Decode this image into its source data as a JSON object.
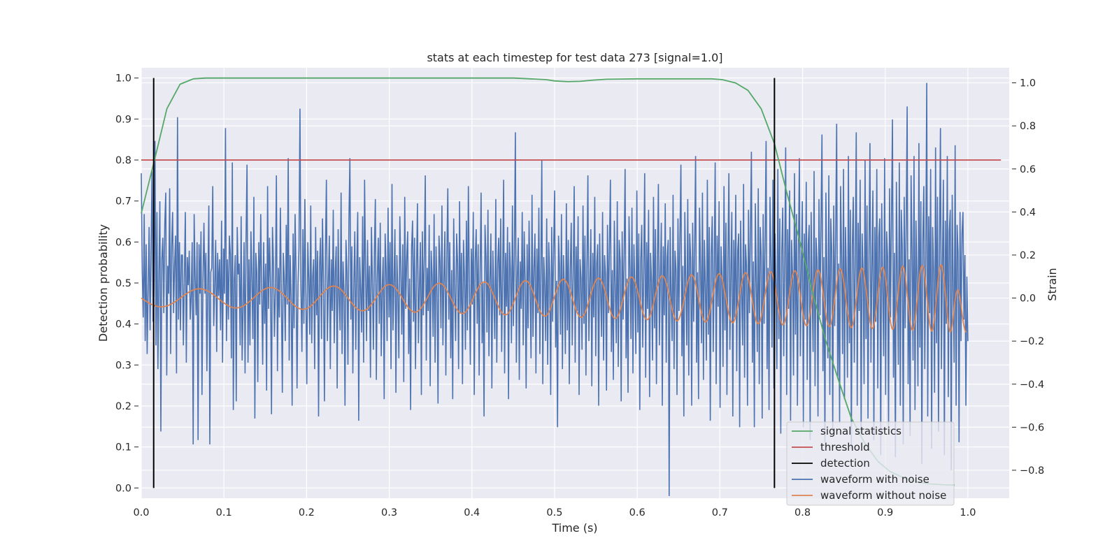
{
  "chart_data": {
    "type": "line",
    "title": "stats at each timestep for test data 273 [signal=1.0]",
    "xlabel": "Time (s)",
    "ylabel": "Detection probability",
    "ylabel_right": "Strain",
    "xlim": [
      0.0,
      1.05
    ],
    "ylim": [
      -0.025,
      1.025
    ],
    "ylim_right": [
      -0.93,
      1.07
    ],
    "x_ticks": [
      "0.0",
      "0.1",
      "0.2",
      "0.3",
      "0.4",
      "0.5",
      "0.6",
      "0.7",
      "0.8",
      "0.9",
      "1.0"
    ],
    "y_ticks": [
      "0.0",
      "0.1",
      "0.2",
      "0.3",
      "0.4",
      "0.5",
      "0.6",
      "0.7",
      "0.8",
      "0.9",
      "1.0"
    ],
    "y_right_ticks": [
      "−0.8",
      "−0.6",
      "−0.4",
      "−0.2",
      "0.0",
      "0.2",
      "0.4",
      "0.6",
      "0.8",
      "1.0"
    ],
    "grid": true,
    "legend_position": "lower-right",
    "colors": {
      "signal_statistics": "#55a868",
      "threshold": "#c44e52",
      "detection": "#000000",
      "waveform_with_noise": "#4c72b0",
      "waveform_without_noise": "#dd8452",
      "background": "#eaeaf2",
      "grid": "#ffffff"
    },
    "series": [
      {
        "name": "signal statistics",
        "axis": "left",
        "x": [
          0.0,
          0.016,
          0.031,
          0.047,
          0.063,
          0.078,
          0.1,
          0.2,
          0.3,
          0.4,
          0.45,
          0.47,
          0.49,
          0.5,
          0.516,
          0.531,
          0.547,
          0.563,
          0.6,
          0.65,
          0.69,
          0.703,
          0.719,
          0.734,
          0.75,
          0.766,
          0.781,
          0.797,
          0.813,
          0.828,
          0.844,
          0.859,
          0.875,
          0.891,
          0.906,
          0.922,
          0.938,
          0.953,
          0.969,
          0.984
        ],
        "y": [
          0.67,
          0.8,
          0.925,
          0.985,
          0.998,
          1.0,
          1.0,
          1.0,
          1.0,
          1.0,
          1.0,
          0.998,
          0.996,
          0.993,
          0.991,
          0.992,
          0.995,
          0.997,
          0.998,
          0.998,
          0.998,
          0.996,
          0.988,
          0.97,
          0.925,
          0.84,
          0.72,
          0.6,
          0.47,
          0.36,
          0.26,
          0.17,
          0.11,
          0.065,
          0.04,
          0.025,
          0.015,
          0.01,
          0.008,
          0.007
        ]
      },
      {
        "name": "threshold",
        "axis": "left",
        "x": [
          0.0,
          1.04
        ],
        "y": [
          0.8,
          0.8
        ]
      },
      {
        "name": "detection",
        "axis": "left",
        "vlines": [
          0.015,
          0.766
        ],
        "ymin": 0.0,
        "ymax": 1.0
      },
      {
        "name": "waveform with noise",
        "axis": "right",
        "x_start": 0.0,
        "x_end": 1.0,
        "description_amplitude_std": 0.17,
        "y_sample_every_0_0025s": [
          0.58,
          0.12,
          -0.09,
          0.39,
          -0.2,
          0.25,
          -0.26,
          0.04,
          0.33,
          -0.15,
          0.21,
          0.59,
          -0.11,
          0.06,
          0.73,
          -0.22,
          0.4,
          -0.33,
          0.12,
          0.45,
          -0.62,
          0.18,
          0.28,
          -0.07,
          0.34,
          0.49,
          -0.36,
          0.15,
          0.02,
          0.51,
          -0.26,
          0.24,
          0.4,
          -0.07,
          0.15,
          0.29,
          -0.35,
          0.84,
          -0.1,
          0.26,
          -0.15,
          0.2,
          0.2,
          -0.22,
          0.09,
          0.4,
          -0.3,
          0.19,
          0.06,
          0.22,
          -0.1,
          0.01,
          0.26,
          -0.68,
          0.39,
          0.1,
          -0.08,
          0.26,
          -0.66,
          0.25,
          0.02,
          0.31,
          -0.45,
          0.08,
          0.35,
          0.02,
          0.21,
          -0.34,
          0.07,
          0.43,
          -0.68,
          0.12,
          0.14,
          0.52,
          -0.13,
          0.06,
          0.27,
          -0.25,
          0.21,
          0.01,
          0.18,
          -0.15,
          0.36,
          -0.3,
          0.23,
          0.02,
          0.79,
          -0.2,
          0.18,
          -0.1,
          0.29,
          0.2,
          -0.28,
          0.63,
          -0.52,
          0.08,
          0.2,
          -0.48,
          0.33,
          0.11,
          0.16,
          -0.22,
          0.38,
          -0.29,
          -0.05,
          0.26,
          -0.35,
          0.27,
          0.62,
          -0.3,
          0.18,
          -0.22,
          0.31,
          0.09,
          -0.19,
          0.47,
          -0.56,
          0.21,
          0.12,
          -0.39,
          0.26,
          -0.03,
          0.39,
          0.04,
          -0.31,
          0.26,
          -0.12,
          0.16,
          -0.43,
          0.52,
          -0.05,
          0.28,
          0.07,
          -0.54,
          0.33,
          0.16,
          -0.18,
          0.04,
          0.57,
          -0.34,
          0.14,
          -0.09,
          0.42,
          0.02,
          -0.44,
          0.21,
          0.09,
          -0.2,
          0.34,
          -0.03,
          0.65,
          -0.29,
          0.2,
          0.0,
          -0.5,
          0.3,
          -0.14,
          0.39,
          0.12,
          -0.42,
          0.06,
          0.23,
          0.88,
          0.05,
          -0.25,
          0.32,
          -0.12,
          0.46,
          0.03,
          -0.4,
          0.26,
          0.09,
          -0.17,
          0.43,
          -0.21,
          0.1,
          0.18,
          -0.33,
          0.33,
          -0.08,
          0.22,
          -0.55,
          0.15,
          0.28,
          -0.19,
          0.37,
          0.07,
          -0.48,
          0.21,
          0.55,
          -0.2,
          0.06,
          0.29,
          -0.33,
          0.18,
          -0.06,
          0.41,
          -0.21,
          0.12,
          0.24,
          -0.42,
          0.32,
          0.01,
          -0.15,
          0.49,
          -0.26,
          0.17,
          0.03,
          -0.5,
          0.27,
          0.12,
          -0.31,
          0.36,
          0.65,
          -0.1,
          0.24,
          -0.35,
          0.06,
          0.31,
          -0.24,
          0.14,
          0.4,
          -0.57,
          0.19,
          0.04,
          -0.16,
          0.38,
          -0.3,
          0.55,
          0.12,
          -0.2,
          0.27,
          -0.06,
          0.15,
          -0.37,
          0.33,
          0.08,
          -0.24,
          0.21,
          0.46,
          -0.38,
          0.1,
          0.28,
          -0.12,
          0.35,
          -0.27,
          0.05,
          0.19,
          -0.47,
          0.3,
          0.13,
          -0.2,
          0.42,
          -0.09,
          0.26,
          -0.33,
          0.53,
          -0.15,
          0.07,
          0.32,
          -0.44,
          0.2,
          0.02,
          -0.28,
          0.38,
          0.14,
          -0.17,
          0.25,
          -0.39,
          0.47,
          -0.05,
          0.18,
          0.31,
          -0.26,
          0.09,
          -0.52,
          0.23,
          0.36,
          -0.11,
          0.28,
          -0.33,
          0.12,
          0.44,
          -0.21,
          0.05,
          0.26,
          -0.45,
          0.31,
          -0.08,
          0.19,
          0.57,
          -0.29,
          0.14,
          -0.06,
          0.34,
          -0.41,
          0.22,
          0.1,
          -0.18,
          0.39,
          -0.3,
          0.24,
          0.03,
          -0.49,
          0.29,
          0.17,
          -0.14,
          0.43,
          -0.22,
          0.08,
          0.31,
          -0.36,
          0.2,
          0.51,
          -0.1,
          0.26,
          -0.28,
          0.13,
          -0.47,
          0.37,
          0.04,
          -0.2,
          0.3,
          0.16,
          -0.33,
          0.45,
          -0.07,
          0.21,
          -0.4,
          0.27,
          0.1,
          -0.24,
          0.36,
          -0.15,
          0.52,
          0.06,
          -0.31,
          0.23,
          -0.03,
          0.4,
          -0.45,
          0.18,
          0.32,
          -0.12,
          0.25,
          -0.36,
          0.12,
          0.49,
          -0.21,
          0.07,
          -0.55,
          0.34,
          0.19,
          -0.16,
          0.41,
          -0.27,
          0.09,
          0.3,
          -0.42,
          0.22,
          0.02,
          -0.19,
          0.46,
          -0.3,
          0.16,
          0.28,
          -0.08,
          0.37,
          -0.25,
          0.11,
          0.55,
          -0.35,
          0.21,
          -0.04,
          0.33,
          -0.47,
          0.26,
          0.13,
          -0.21,
          0.43,
          -0.13,
          0.2,
          0.77,
          -0.3,
          0.1,
          0.28,
          -0.38,
          0.17,
          -0.05,
          0.4,
          -0.22,
          0.31,
          0.08,
          -0.42,
          0.25,
          -0.14,
          0.36,
          0.04,
          -0.28,
          0.48,
          -0.18,
          0.14,
          0.3,
          -0.35,
          0.23,
          -0.07,
          0.42,
          -0.26,
          0.12,
          0.64,
          -0.4,
          0.19,
          0.06,
          -0.2,
          0.37,
          -0.31,
          0.26,
          0.1,
          -0.45,
          0.33,
          -0.11,
          0.22,
          0.5,
          -0.23,
          0.08,
          -0.6,
          0.29,
          0.15,
          -0.17,
          0.39,
          -0.33,
          0.2,
          0.04,
          -0.26,
          0.44,
          -0.15,
          0.27,
          -0.4,
          0.13,
          0.35,
          -0.22,
          0.1,
          0.52,
          -0.3,
          0.24,
          -0.06,
          0.38,
          -0.45,
          0.18,
          0.09,
          -0.24,
          0.43,
          -0.12,
          0.29,
          -0.36,
          0.14,
          0.57,
          -0.2,
          0.06,
          0.32,
          -0.41,
          0.21,
          -0.09,
          0.47,
          -0.27,
          0.16,
          0.25,
          -0.5,
          0.3,
          0.03,
          -0.18,
          0.4,
          -0.29,
          0.2,
          0.11,
          -0.43,
          0.34,
          -0.07,
          0.23,
          0.55,
          -0.25,
          0.13,
          -0.38,
          0.36,
          0.05,
          -0.21,
          0.45,
          -0.32,
          0.27,
          0.17,
          -0.48,
          0.31,
          -0.1,
          0.2,
          0.6,
          -0.28,
          0.09,
          -0.44,
          0.38,
          0.14,
          -0.19,
          0.42,
          -0.35,
          0.25,
          0.04,
          -0.26,
          0.5,
          -0.16,
          0.3,
          -0.52,
          0.18,
          0.34,
          -0.23,
          0.12,
          0.58,
          -0.37,
          0.26,
          -0.05,
          0.41,
          -0.46,
          0.21,
          0.08,
          -0.29,
          0.47,
          -0.14,
          0.32,
          -0.4,
          0.16,
          0.53,
          -0.22,
          0.1,
          0.35,
          -0.5,
          0.24,
          -0.08,
          0.44,
          -0.3,
          0.19,
          0.27,
          -0.92,
          0.33,
          0.02,
          -0.2,
          0.48,
          -0.33,
          0.22,
          0.13,
          -0.45,
          0.37,
          -0.06,
          0.28,
          0.62,
          -0.27,
          0.15,
          -0.55,
          0.4,
          0.07,
          -0.22,
          0.46,
          -0.36,
          0.3,
          0.18,
          -0.5,
          0.35,
          -0.11,
          0.23,
          0.66,
          -0.3,
          0.12,
          -0.47,
          0.42,
          0.16,
          -0.21,
          0.49,
          -0.38,
          0.27,
          0.06,
          -0.29,
          0.55,
          -0.17,
          0.33,
          -0.57,
          0.2,
          0.38,
          -0.25,
          0.14,
          0.63,
          -0.4,
          0.29,
          -0.04,
          0.45,
          -0.51,
          0.24,
          0.1,
          -0.32,
          0.52,
          -0.15,
          0.35,
          -0.45,
          0.18,
          0.58,
          -0.24,
          0.11,
          0.4,
          -0.55,
          0.27,
          -0.09,
          0.48,
          -0.34,
          0.22,
          0.3,
          -0.6,
          0.36,
          0.03,
          -0.22,
          0.53,
          -0.37,
          0.25,
          0.15,
          -0.5,
          0.41,
          -0.07,
          0.31,
          0.68,
          -0.3,
          0.17,
          -0.6,
          0.44,
          0.08,
          -0.25,
          0.51,
          -0.4,
          0.33,
          0.2,
          -0.56,
          0.39,
          -0.12,
          0.27,
          0.73,
          -0.33,
          0.14,
          -0.52,
          0.47,
          0.18,
          -0.23,
          0.55,
          -0.42,
          0.3,
          0.07,
          -0.33,
          0.6,
          -0.19,
          0.37,
          -0.63,
          0.22,
          0.42,
          -0.27,
          0.16,
          0.7,
          -0.45,
          0.32,
          -0.05,
          0.5,
          -0.57,
          0.27,
          0.11,
          -0.36,
          0.58,
          -0.17,
          0.39,
          -0.5,
          0.2,
          0.65,
          -0.27,
          0.13,
          0.45,
          -0.6,
          0.3,
          -0.1,
          0.54,
          -0.38,
          0.25,
          0.34,
          -0.66,
          0.4,
          0.04,
          -0.25,
          0.59,
          -0.41,
          0.28,
          0.17,
          -0.55,
          0.46,
          -0.08,
          0.35,
          0.76,
          -0.34,
          0.19,
          -0.67,
          0.49,
          0.09,
          -0.28,
          0.57,
          -0.45,
          0.37,
          0.22,
          -0.62,
          0.43,
          -0.13,
          0.3,
          0.81,
          -0.37,
          0.16,
          -0.58,
          0.52,
          0.2,
          -0.26,
          0.6,
          -0.47,
          0.33,
          0.08,
          -0.37,
          0.66,
          -0.21,
          0.41,
          -0.7,
          0.24,
          0.47,
          -0.3,
          0.18,
          0.77,
          -0.5,
          0.35,
          -0.06,
          0.55,
          -0.63,
          0.3,
          0.12,
          -0.4,
          0.64,
          -0.19,
          0.43,
          -0.56,
          0.22,
          0.72,
          -0.3,
          0.14,
          0.5,
          -0.66,
          0.33,
          -0.11,
          0.6,
          -0.42,
          0.28,
          0.37,
          -0.73,
          0.44,
          0.05,
          -0.27,
          0.65,
          -0.45,
          0.31,
          0.19,
          -0.61,
          0.51,
          -0.09,
          0.38,
          0.83,
          -0.37,
          0.21,
          -0.74,
          0.54,
          0.1,
          -0.31,
          0.63,
          -0.5,
          0.41,
          0.24,
          -0.68,
          0.47,
          -0.14,
          0.33,
          0.89,
          -0.4,
          0.18,
          -0.64,
          0.57,
          0.22,
          -0.29,
          0.66,
          -0.52,
          0.36,
          0.09,
          -0.41,
          0.72,
          -0.23,
          0.45,
          -0.77,
          0.26,
          0.52,
          -0.33,
          0.2,
          1.0,
          -0.55,
          0.38,
          -0.07,
          0.6,
          -0.7,
          0.33,
          0.13,
          -0.44,
          0.7,
          -0.21,
          0.47,
          -0.62,
          0.24,
          0.79,
          -0.33,
          0.15,
          0.55,
          -0.73,
          0.36,
          -0.12,
          0.66,
          -0.46,
          0.31,
          0.41,
          -0.8,
          0.48,
          0.06,
          -0.3,
          0.71,
          -0.5,
          0.34,
          0.21,
          -0.67,
          0.4,
          -0.2,
          0.3,
          0.4,
          -0.1,
          0.2,
          -0.5,
          0.1,
          -0.2
        ]
      },
      {
        "name": "waveform without noise",
        "axis": "right",
        "x_start": 0.0,
        "x_end": 0.998,
        "amplitude_start": 0.04,
        "amplitude_end": 0.16,
        "frequency_hz_start": 10.5,
        "frequency_hz_end": 46,
        "y_end": -0.16
      }
    ]
  }
}
